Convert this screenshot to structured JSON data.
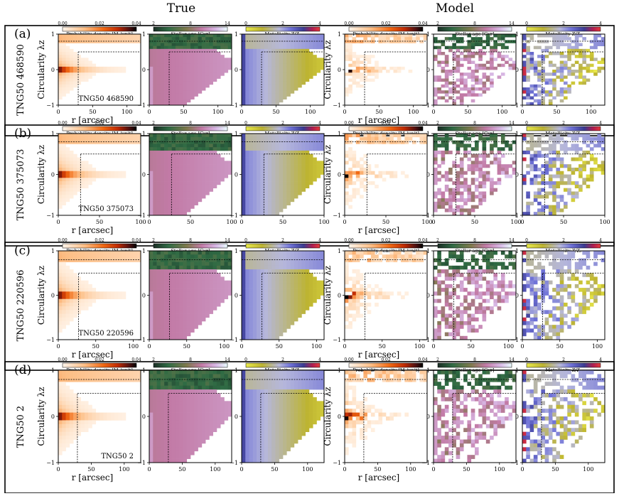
{
  "headers": {
    "true": "True",
    "model": "Model"
  },
  "colorbars": {
    "density": {
      "label": "Probability density [Mₒ/unit]",
      "ticks": [
        "0.00",
        "0.02",
        "0.04"
      ]
    },
    "age": {
      "label": "Stellar age [Gyr]",
      "ticks": [
        "2",
        "8",
        "14"
      ]
    },
    "metal": {
      "label": "Metallicity Z/Zₒ",
      "ticks": [
        "0",
        "2",
        "4"
      ]
    }
  },
  "axes": {
    "xlabel": "r [arcsec]",
    "ylabel": "Circularity λz",
    "yticks": [
      "1",
      "0",
      "−1"
    ]
  },
  "chart_data": [
    {
      "type": "heatmap",
      "label": "(a)",
      "galaxy": "TNG50 468590",
      "xlim": [
        0,
        120
      ],
      "xticks": [
        "0",
        "50",
        "100"
      ],
      "r_inner": 29,
      "r_outer": 120,
      "lambda_cut": [
        0.8,
        0.5
      ],
      "seed": 3
    },
    {
      "type": "heatmap",
      "label": "(b)",
      "galaxy": "TNG50 375073",
      "xlim": [
        0,
        100
      ],
      "xticks": [
        "0",
        "50",
        "100"
      ],
      "r_inner": 27,
      "r_outer": 100,
      "lambda_cut": [
        0.8,
        0.5
      ],
      "seed": 11
    },
    {
      "type": "heatmap",
      "label": "(c)",
      "galaxy": "TNG50 220596",
      "xlim": [
        0,
        110
      ],
      "xticks": [
        "0",
        "50",
        "100"
      ],
      "r_inner": 27,
      "r_outer": 110,
      "lambda_cut": [
        0.8,
        0.5
      ],
      "seed": 23
    },
    {
      "type": "heatmap",
      "label": "(d)",
      "galaxy": "TNG50 2",
      "xlim": [
        0,
        125
      ],
      "xticks": [
        "0",
        "50",
        "100"
      ],
      "r_inner": 29,
      "r_outer": 125,
      "lambda_cut": [
        0.8,
        0.5
      ],
      "seed": 37
    }
  ]
}
